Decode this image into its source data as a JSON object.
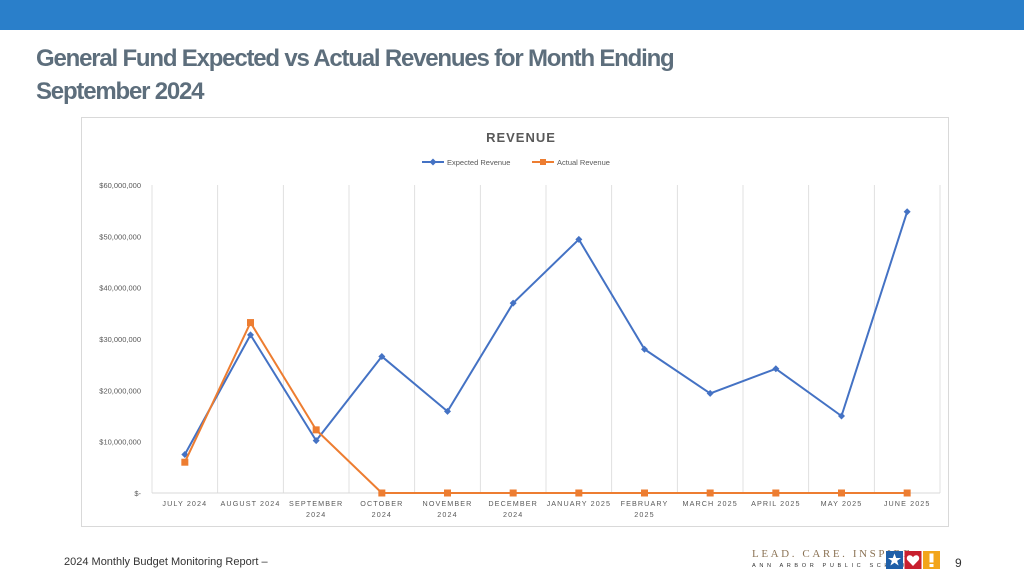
{
  "slide": {
    "title_line1": "General Fund Expected vs Actual Revenues for Month Ending",
    "title_line2": "September 2024",
    "footer_text": "2024 Monthly Budget Monitoring Report –",
    "page_number": "9",
    "logo_tagline": "LEAD. CARE. INSPIRE.",
    "logo_subtitle": "ANN ARBOR PUBLIC SCHOOLS",
    "accent_color": "#2a7fca",
    "title_color": "#5d6e7c"
  },
  "chart_data": {
    "type": "line",
    "title": "REVENUE",
    "xlabel": "",
    "ylabel": "",
    "ylim": [
      0,
      60000000
    ],
    "yticks": [
      0,
      10000000,
      20000000,
      30000000,
      40000000,
      50000000,
      60000000
    ],
    "ytick_labels": [
      "$-",
      "$10,000,000",
      "$20,000,000",
      "$30,000,000",
      "$40,000,000",
      "$50,000,000",
      "$60,000,000"
    ],
    "categories": [
      [
        "JULY 2024"
      ],
      [
        "AUGUST 2024"
      ],
      [
        "SEPTEMBER",
        "2024"
      ],
      [
        "OCTOBER",
        "2024"
      ],
      [
        "NOVEMBER",
        "2024"
      ],
      [
        "DECEMBER",
        "2024"
      ],
      [
        "JANUARY 2025"
      ],
      [
        "FEBRUARY",
        "2025"
      ],
      [
        "MARCH 2025"
      ],
      [
        "APRIL 2025"
      ],
      [
        "MAY 2025"
      ],
      [
        "JUNE 2025"
      ]
    ],
    "series": [
      {
        "name": "Expected Revenue",
        "color": "#4472c4",
        "marker": "diamond",
        "values": [
          7500000,
          30800000,
          10200000,
          26600000,
          15900000,
          37000000,
          49400000,
          28000000,
          19400000,
          24200000,
          15000000,
          54800000
        ]
      },
      {
        "name": "Actual Revenue",
        "color": "#ed7d31",
        "marker": "square",
        "values": [
          6000000,
          33200000,
          12300000,
          0,
          0,
          0,
          0,
          0,
          0,
          0,
          0,
          0
        ]
      }
    ],
    "grid": "vertical",
    "legend_position": "top-center"
  }
}
